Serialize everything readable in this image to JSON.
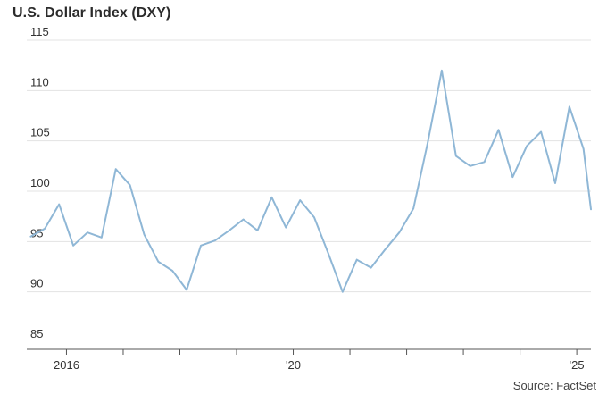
{
  "chart_data": {
    "type": "line",
    "title": "U.S. Dollar Index (DXY)",
    "source": "Source: FactSet",
    "xlabel": "",
    "ylabel": "",
    "ylim": [
      85,
      115
    ],
    "yticks": [
      85,
      90,
      95,
      100,
      105,
      110,
      115
    ],
    "x_tick_labels": [
      {
        "label": "2016",
        "x": 2016.0
      },
      {
        "label": "'20",
        "x": 2020.0
      },
      {
        "label": "'25",
        "x": 2025.0
      }
    ],
    "x_minor_ticks": [
      2016.0,
      2017.0,
      2018.0,
      2019.0,
      2020.0,
      2021.0,
      2022.0,
      2023.0,
      2024.0,
      2025.0
    ],
    "xlim": [
      2015.3,
      2025.25
    ],
    "grid": "horizontal",
    "colors": {
      "line": "#8fb7d6",
      "grid": "#e3e3e3",
      "axis": "#555555"
    },
    "series": [
      {
        "x": [
          2015.37,
          2015.62,
          2015.87,
          2016.12,
          2016.37,
          2016.62,
          2016.87,
          2017.12,
          2017.37,
          2017.62,
          2017.87,
          2018.12,
          2018.37,
          2018.62,
          2018.87,
          2019.12,
          2019.37,
          2019.62,
          2019.87,
          2020.12,
          2020.37,
          2020.62,
          2020.87,
          2021.12,
          2021.37,
          2021.62,
          2021.87,
          2022.12,
          2022.37,
          2022.62,
          2022.87,
          2023.12,
          2023.37,
          2023.62,
          2023.87,
          2024.12,
          2024.37,
          2024.62,
          2024.87,
          2025.12,
          2025.25
        ],
        "values": [
          95.5,
          96.3,
          98.7,
          94.6,
          95.9,
          95.4,
          102.2,
          100.6,
          95.7,
          93.0,
          92.1,
          90.2,
          94.6,
          95.1,
          96.1,
          97.2,
          96.1,
          99.4,
          96.4,
          99.1,
          97.4,
          93.8,
          90.0,
          93.2,
          92.4,
          94.2,
          95.9,
          98.3,
          104.8,
          112.0,
          103.5,
          102.5,
          102.9,
          106.1,
          101.4,
          104.5,
          105.9,
          100.8,
          108.4,
          104.2,
          98.2
        ]
      }
    ]
  }
}
